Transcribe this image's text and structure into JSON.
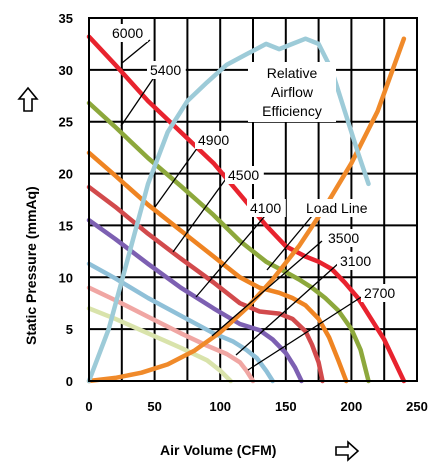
{
  "chart_data": {
    "type": "line",
    "xlabel": "Air Volume (CFM)",
    "ylabel": "Static Pressure (mmAq)",
    "xlim": [
      0,
      250
    ],
    "ylim": [
      0,
      35
    ],
    "x_ticks": [
      "0",
      "50",
      "100",
      "150",
      "200",
      "250"
    ],
    "y_ticks": [
      "0",
      "5",
      "10",
      "15",
      "20",
      "25",
      "30",
      "35"
    ],
    "grid": true,
    "series": [
      {
        "name": "6000",
        "color": "#e8232e",
        "x": [
          0,
          20,
          45,
          70,
          95,
          115,
          135,
          150,
          165,
          175,
          185,
          195,
          205,
          215,
          225,
          240
        ],
        "y": [
          33.2,
          30.5,
          27,
          24,
          21,
          18,
          15,
          13,
          12,
          11.5,
          10.8,
          9.5,
          8,
          6,
          4,
          0
        ]
      },
      {
        "name": "5400",
        "color": "#8da83c",
        "x": [
          0,
          20,
          45,
          70,
          95,
          115,
          135,
          150,
          160,
          170,
          180,
          190,
          200,
          207,
          213
        ],
        "y": [
          26.8,
          24.5,
          21.5,
          18.8,
          16,
          13.5,
          11.5,
          10.5,
          9.8,
          9,
          8,
          6.8,
          5,
          3,
          0
        ]
      },
      {
        "name": "4900",
        "color": "#ef8422",
        "x": [
          0,
          20,
          45,
          70,
          95,
          115,
          130,
          145,
          155,
          165,
          175,
          183,
          190,
          196
        ],
        "y": [
          22,
          19.8,
          17,
          14.5,
          12,
          10,
          9,
          8.5,
          8,
          7.3,
          6,
          4.2,
          2,
          0
        ]
      },
      {
        "name": "4500",
        "color": "#d24a4c",
        "x": [
          0,
          20,
          45,
          70,
          95,
          115,
          130,
          145,
          155,
          165,
          170,
          175,
          178
        ],
        "y": [
          18.7,
          16.8,
          14.2,
          11.8,
          9.5,
          7.5,
          6.7,
          6.5,
          6,
          4.8,
          3.5,
          1.8,
          0
        ]
      },
      {
        "name": "4100",
        "color": "#7d60b2",
        "x": [
          0,
          20,
          45,
          70,
          95,
          115,
          130,
          140,
          150,
          157,
          162
        ],
        "y": [
          15.5,
          13.7,
          11.3,
          9,
          7,
          5.5,
          4.9,
          4,
          2.7,
          1.3,
          0
        ]
      },
      {
        "name": "3500",
        "color": "#8fc0d8",
        "x": [
          0,
          20,
          45,
          70,
          95,
          110,
          120,
          128,
          135,
          140
        ],
        "y": [
          11.3,
          9.9,
          8,
          6.3,
          4.6,
          3.8,
          3,
          2.2,
          1,
          0
        ]
      },
      {
        "name": "3100",
        "color": "#f0a6a3",
        "x": [
          0,
          20,
          45,
          70,
          90,
          105,
          115,
          120,
          125
        ],
        "y": [
          9,
          7.8,
          6.2,
          4.6,
          3.4,
          2.6,
          1.8,
          1,
          0
        ]
      },
      {
        "name": "2700",
        "color": "#d9e3ab",
        "x": [
          0,
          20,
          45,
          70,
          90,
          100,
          108
        ],
        "y": [
          7,
          6,
          4.6,
          3.2,
          2,
          1,
          0
        ]
      },
      {
        "name": "Load Line",
        "color": "#f08a2a",
        "x": [
          0,
          20,
          40,
          60,
          80,
          100,
          120,
          140,
          160,
          180,
          200,
          220,
          240
        ],
        "y": [
          0,
          0.3,
          0.8,
          1.6,
          2.9,
          4.7,
          7,
          9.8,
          13,
          16.8,
          21,
          26,
          33
        ]
      },
      {
        "name": "Relative Airflow Efficiency",
        "color": "#9dcbd8",
        "x": [
          0,
          15,
          30,
          45,
          60,
          75,
          90,
          105,
          120,
          135,
          145,
          155,
          165,
          175,
          185,
          195,
          205,
          213
        ],
        "y": [
          0,
          5,
          12,
          19,
          24,
          27,
          28.8,
          30.5,
          31.5,
          32.5,
          32,
          32.5,
          33,
          32.5,
          30,
          26,
          22,
          19
        ]
      }
    ],
    "labels": {
      "rpm": [
        "6000",
        "5400",
        "4900",
        "4500",
        "4100",
        "3500",
        "3100",
        "2700"
      ],
      "load_line": "Load Line",
      "efficiency": [
        "Relative",
        "Airflow",
        "Efficiency"
      ]
    }
  }
}
